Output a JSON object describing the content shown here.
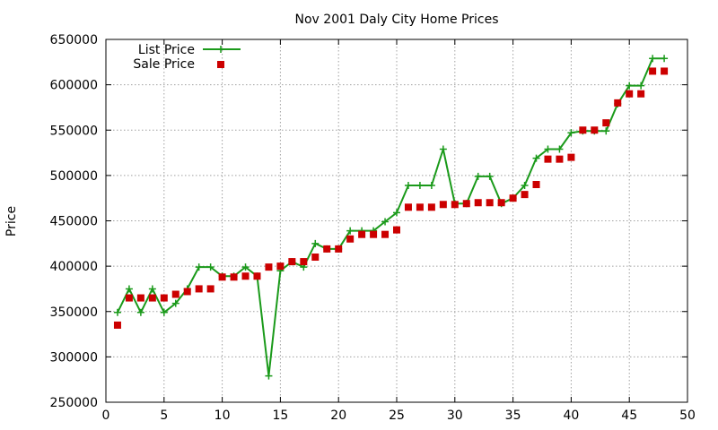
{
  "chart_data": {
    "type": "line",
    "title": "Nov 2001 Daly City Home Prices",
    "xlabel": "",
    "ylabel": "Price",
    "xlim": [
      0,
      50
    ],
    "ylim": [
      250000,
      650000
    ],
    "xticks": [
      0,
      5,
      10,
      15,
      20,
      25,
      30,
      35,
      40,
      45,
      50
    ],
    "yticks": [
      250000,
      300000,
      350000,
      400000,
      450000,
      500000,
      550000,
      600000,
      650000
    ],
    "grid": true,
    "legend_position": "top-left",
    "series": [
      {
        "name": "List Price",
        "style": "line-with-plus-markers",
        "color": "#1a9a1a",
        "x": [
          1,
          2,
          3,
          4,
          5,
          6,
          7,
          8,
          9,
          10,
          11,
          12,
          13,
          14,
          15,
          16,
          17,
          18,
          19,
          20,
          21,
          22,
          23,
          24,
          25,
          26,
          27,
          28,
          29,
          30,
          31,
          32,
          33,
          34,
          35,
          36,
          37,
          38,
          39,
          40,
          41,
          42,
          43,
          44,
          45,
          46,
          47,
          48
        ],
        "values": [
          349000,
          375000,
          349000,
          375000,
          349000,
          359000,
          375000,
          399000,
          399000,
          389000,
          389000,
          399000,
          389000,
          279000,
          395000,
          405000,
          399000,
          425000,
          419000,
          419000,
          439000,
          439000,
          439000,
          449000,
          459000,
          489000,
          489000,
          489000,
          529000,
          469000,
          469000,
          499000,
          499000,
          469000,
          475000,
          489000,
          519000,
          529000,
          529000,
          547000,
          549000,
          549000,
          549000,
          579000,
          599000,
          599000,
          629000,
          629000
        ]
      },
      {
        "name": "Sale Price",
        "style": "square-markers",
        "color": "#cc0000",
        "x": [
          1,
          2,
          3,
          4,
          5,
          6,
          7,
          8,
          9,
          10,
          11,
          12,
          13,
          14,
          15,
          16,
          17,
          18,
          19,
          20,
          21,
          22,
          23,
          24,
          25,
          26,
          27,
          28,
          29,
          30,
          31,
          32,
          33,
          34,
          35,
          36,
          37,
          38,
          39,
          40,
          41,
          42,
          43,
          44,
          45,
          46,
          47,
          48
        ],
        "values": [
          335000,
          365000,
          365000,
          365000,
          365000,
          369000,
          372000,
          375000,
          375000,
          388000,
          388000,
          389000,
          389000,
          399000,
          400000,
          405000,
          405000,
          410000,
          419000,
          419000,
          430000,
          435000,
          435000,
          435000,
          440000,
          465000,
          465000,
          465000,
          468000,
          468000,
          469000,
          470000,
          470000,
          470000,
          475000,
          479000,
          490000,
          518000,
          518000,
          520000,
          550000,
          550000,
          558000,
          580000,
          590000,
          590000,
          615000,
          615000
        ]
      }
    ]
  }
}
